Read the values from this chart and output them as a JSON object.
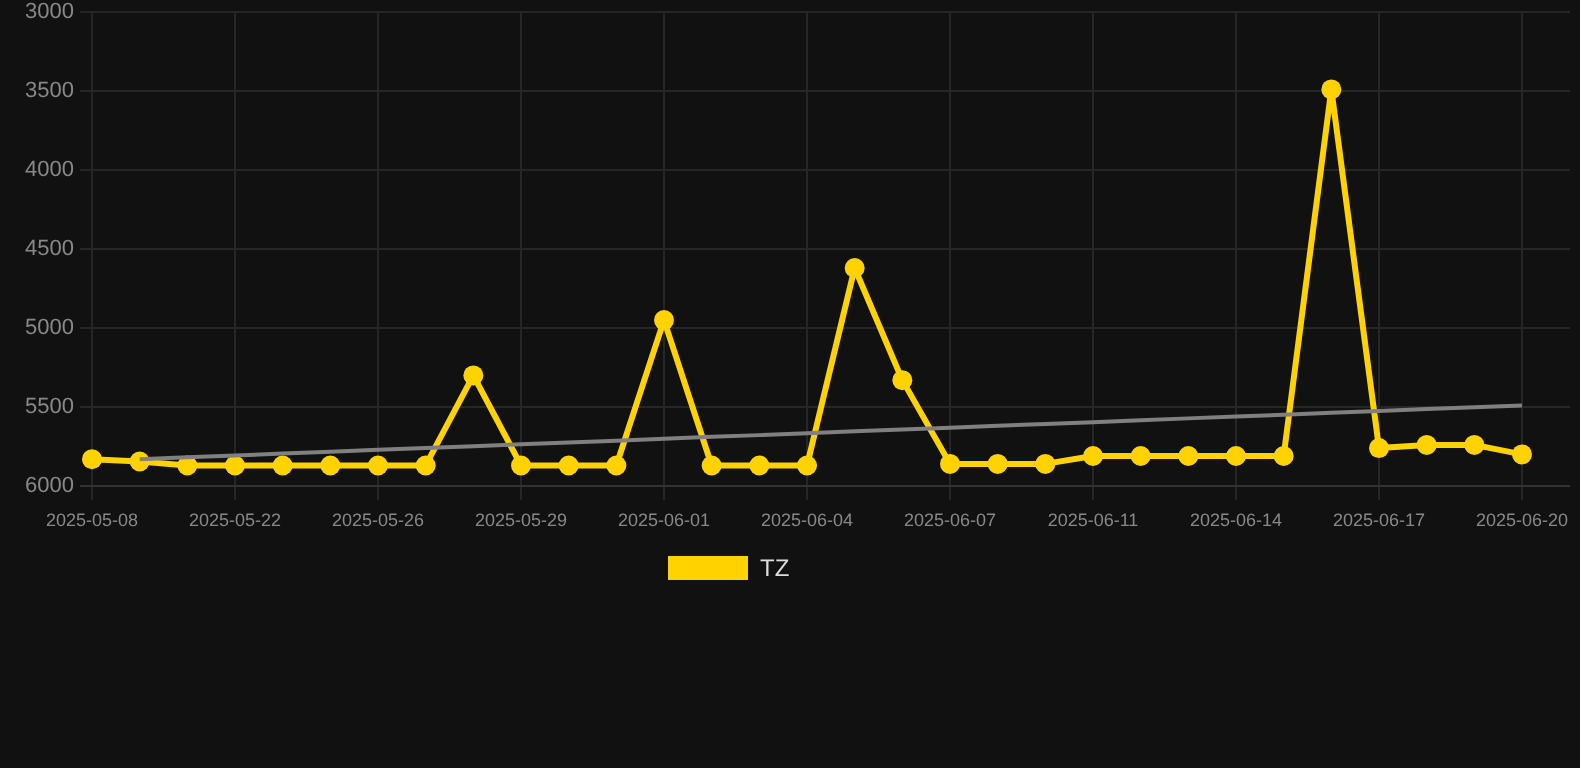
{
  "chart_data": {
    "type": "line",
    "categories": [
      "2025-05-08",
      null,
      null,
      "2025-05-22",
      null,
      null,
      "2025-05-26",
      null,
      null,
      "2025-05-29",
      null,
      null,
      "2025-06-01",
      null,
      null,
      "2025-06-04",
      null,
      null,
      "2025-06-07",
      null,
      null,
      "2025-06-11",
      null,
      null,
      "2025-06-14",
      null,
      null,
      "2025-06-17",
      null,
      null,
      "2025-06-20"
    ],
    "series": [
      {
        "name": "TZ",
        "color": "#ffd200",
        "marker": "circle",
        "values": [
          5830,
          5845,
          5870,
          5870,
          5870,
          5870,
          5870,
          5870,
          5300,
          5870,
          5870,
          5870,
          4950,
          5870,
          5870,
          5870,
          4620,
          5330,
          5860,
          5860,
          5860,
          5810,
          5810,
          5810,
          5810,
          5810,
          3490,
          5760,
          5740,
          5740,
          5800
        ]
      },
      {
        "type": "line",
        "color": "#808080",
        "marker": "none",
        "values": [
          null,
          5830,
          5818,
          5807,
          5795,
          5783,
          5771,
          5760,
          5748,
          5736,
          5725,
          5713,
          5701,
          5689,
          5678,
          5666,
          5654,
          5642,
          5631,
          5619,
          5607,
          5596,
          5584,
          5572,
          5560,
          5549,
          5537,
          5525,
          5513,
          5502,
          5490
        ]
      }
    ],
    "ylim": [
      6000,
      3000
    ],
    "yticks": [
      3000,
      3500,
      4000,
      4500,
      5000,
      5500,
      6000
    ],
    "grid": true,
    "legend": "bottom"
  }
}
